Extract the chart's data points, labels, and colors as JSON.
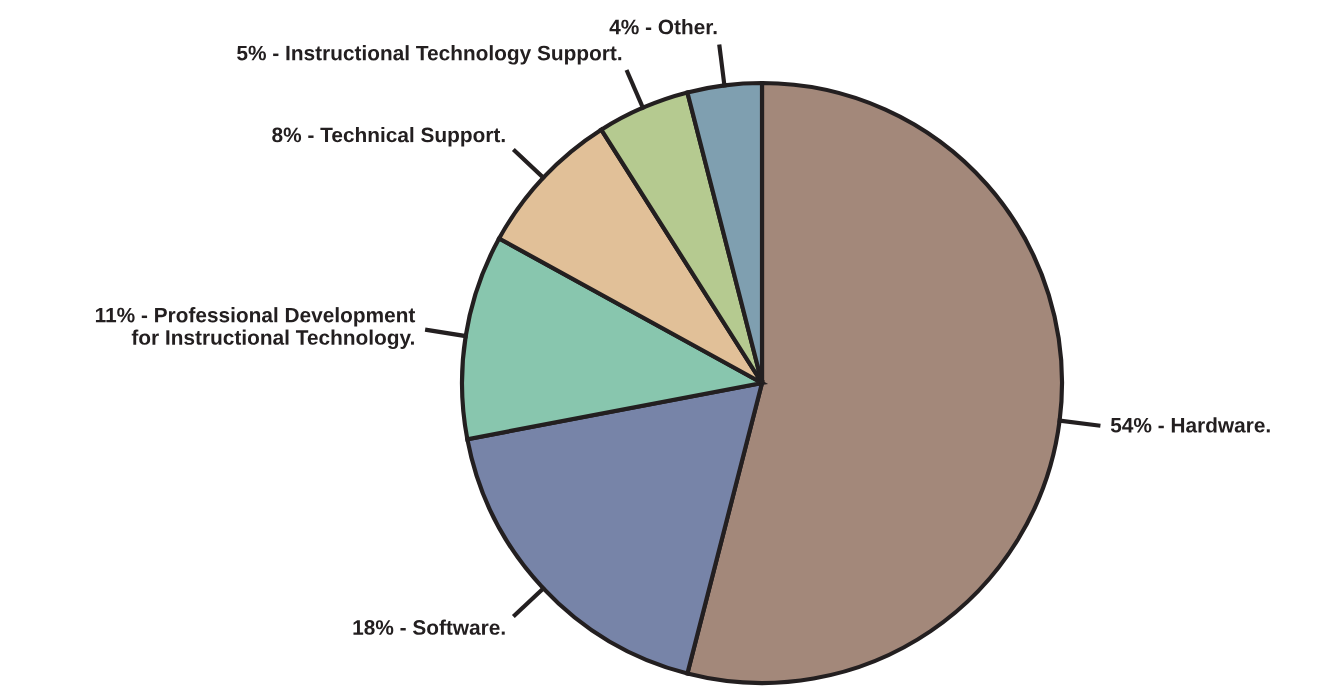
{
  "chart_data": {
    "type": "pie",
    "categories": [
      "54% - Hardware.",
      "18% - Software.",
      "11% - Professional Development\nfor Instructional Technology.",
      "8% - Technical Support.",
      "5% - Instructional Technology Support.",
      "4% - Other."
    ],
    "values": [
      54,
      18,
      11,
      8,
      5,
      4
    ],
    "colors": [
      "#a3887a",
      "#7784a8",
      "#88c6ae",
      "#e1c098",
      "#b5ca90",
      "#7f9fb0"
    ]
  }
}
